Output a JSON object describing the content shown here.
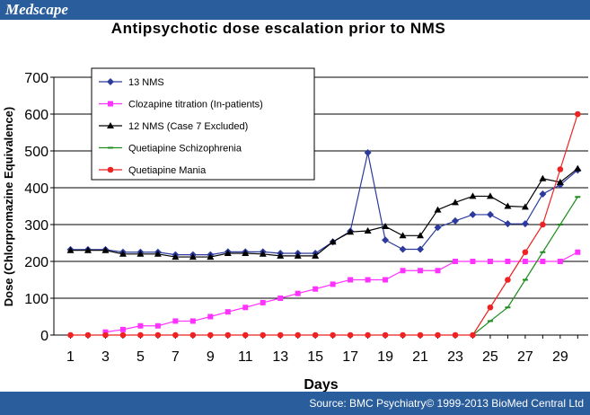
{
  "header": {
    "logo_text": "Medscape",
    "logo_color": "#2a5d9c"
  },
  "footer": {
    "source_text": "Source: BMC Psychiatry© 1999-2013 BioMed Central Ltd"
  },
  "chart_data": {
    "type": "line",
    "title": "Antipsychotic dose escalation prior to NMS",
    "xlabel": "Days",
    "ylabel": "Dose (Chlorpromazine Equivalence)",
    "xlim": [
      1,
      30
    ],
    "ylim": [
      0,
      700
    ],
    "x_ticks": [
      1,
      3,
      5,
      7,
      9,
      11,
      13,
      15,
      17,
      19,
      21,
      23,
      25,
      27,
      29
    ],
    "y_ticks": [
      0,
      100,
      200,
      300,
      400,
      500,
      600,
      700
    ],
    "grid": "horizontal",
    "legend_position": "top-left",
    "series": [
      {
        "name": "13 NMS",
        "color": "#2b3a9c",
        "marker": "diamond",
        "x": [
          1,
          2,
          3,
          4,
          5,
          6,
          7,
          8,
          9,
          10,
          11,
          12,
          13,
          14,
          15,
          16,
          17,
          18,
          19,
          20,
          21,
          22,
          23,
          24,
          25,
          26,
          27,
          28,
          29,
          30
        ],
        "values": [
          232,
          232,
          232,
          225,
          225,
          225,
          218,
          218,
          218,
          226,
          226,
          226,
          222,
          222,
          222,
          253,
          282,
          495,
          258,
          233,
          233,
          292,
          310,
          327,
          327,
          302,
          302,
          383,
          408,
          448
        ]
      },
      {
        "name": "Clozapine titration (In-patients)",
        "color": "#ff33ff",
        "marker": "square",
        "x": [
          3,
          4,
          5,
          6,
          7,
          8,
          9,
          10,
          11,
          12,
          13,
          14,
          15,
          16,
          17,
          18,
          19,
          20,
          21,
          22,
          23,
          24,
          25,
          26,
          27,
          28,
          29,
          30
        ],
        "values": [
          8,
          15,
          25,
          25,
          38,
          38,
          50,
          63,
          75,
          88,
          100,
          113,
          125,
          138,
          150,
          150,
          150,
          175,
          175,
          175,
          200,
          200,
          200,
          200,
          200,
          200,
          200,
          225
        ]
      },
      {
        "name": "12 NMS (Case 7 Excluded)",
        "color": "#000000",
        "marker": "triangle",
        "x": [
          1,
          2,
          3,
          4,
          5,
          6,
          7,
          8,
          9,
          10,
          11,
          12,
          13,
          14,
          15,
          16,
          17,
          18,
          19,
          20,
          21,
          22,
          23,
          24,
          25,
          26,
          27,
          28,
          29,
          30
        ],
        "values": [
          230,
          230,
          230,
          220,
          220,
          220,
          212,
          212,
          212,
          222,
          222,
          220,
          215,
          215,
          215,
          253,
          280,
          283,
          295,
          270,
          270,
          340,
          360,
          377,
          377,
          350,
          348,
          425,
          415,
          452
        ]
      },
      {
        "name": "Quetiapine Schizophrenia",
        "color": "#1e8c1e",
        "marker": "dash",
        "x": [
          24,
          25,
          26,
          27,
          28,
          29,
          30
        ],
        "values": [
          0,
          38,
          75,
          150,
          225,
          300,
          375
        ]
      },
      {
        "name": "Quetiapine Mania",
        "color": "#ee2222",
        "marker": "circle",
        "x": [
          1,
          2,
          3,
          4,
          5,
          6,
          7,
          8,
          9,
          10,
          11,
          12,
          13,
          14,
          15,
          16,
          17,
          18,
          19,
          20,
          21,
          22,
          23,
          24,
          25,
          26,
          27,
          28,
          29,
          30
        ],
        "values": [
          0,
          0,
          0,
          0,
          0,
          0,
          0,
          0,
          0,
          0,
          0,
          0,
          0,
          0,
          0,
          0,
          0,
          0,
          0,
          0,
          0,
          0,
          0,
          0,
          75,
          150,
          225,
          300,
          450,
          600
        ]
      }
    ]
  }
}
